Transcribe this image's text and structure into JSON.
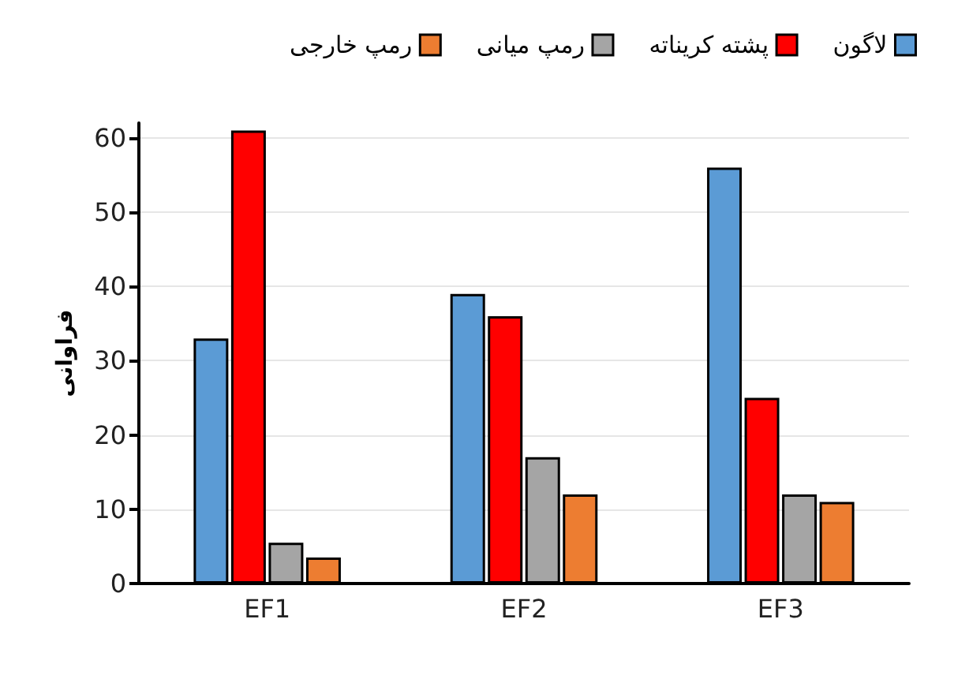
{
  "chart_data": {
    "type": "bar",
    "ylabel": "فراوانی",
    "categories": [
      "EF1",
      "EF2",
      "EF3"
    ],
    "series": [
      {
        "name": "لاگون",
        "color": "#5b9bd5",
        "values": [
          33,
          39,
          56
        ]
      },
      {
        "name": "پشته کریناته",
        "color": "#ff0000",
        "values": [
          61,
          36,
          25
        ]
      },
      {
        "name": "رمپ میانی",
        "color": "#a5a5a5",
        "values": [
          5.5,
          17,
          12
        ]
      },
      {
        "name": "رمپ خارجی",
        "color": "#ed7d31",
        "values": [
          3.5,
          12,
          11
        ]
      }
    ],
    "ylim": [
      0,
      62
    ],
    "yticks": [
      0,
      10,
      20,
      30,
      40,
      50,
      60
    ],
    "grid": "y",
    "legend": "top"
  }
}
